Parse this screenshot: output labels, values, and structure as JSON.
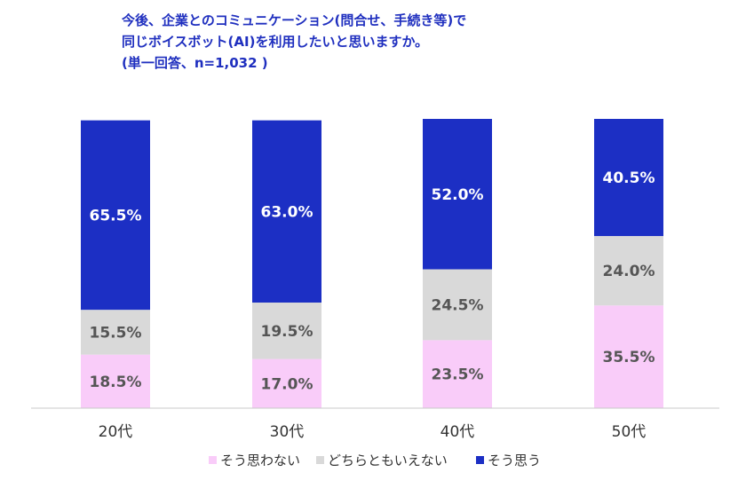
{
  "chart_data": {
    "type": "bar",
    "stacked": true,
    "normalized": true,
    "title_lines": [
      "今後、企業とのコミュニケーション(問合せ、手続き等)で",
      "同じボイスボット(AI)を利用したいと思いますか。",
      "(単一回答、n=1,032 )"
    ],
    "categories": [
      "20代",
      "30代",
      "40代",
      "50代"
    ],
    "series": [
      {
        "name": "そう思わない",
        "color": "#f9ccf9",
        "label_color": "#555555",
        "values": [
          18.5,
          17.0,
          23.5,
          35.5
        ],
        "labels": [
          "18.5%",
          "17.0%",
          "23.5%",
          "35.5%"
        ]
      },
      {
        "name": "どちらともいえない",
        "color": "#d9d9d9",
        "label_color": "#555555",
        "values": [
          15.5,
          19.5,
          24.5,
          24.0
        ],
        "labels": [
          "15.5%",
          "19.5%",
          "24.5%",
          "24.0%"
        ]
      },
      {
        "name": "そう思う",
        "color": "#1c2fc4",
        "label_color": "#ffffff",
        "values": [
          65.5,
          63.0,
          52.0,
          40.5
        ],
        "labels": [
          "65.5%",
          "63.0%",
          "52.0%",
          "40.5%"
        ]
      }
    ],
    "ylim": [
      0,
      100
    ],
    "grid": false,
    "legend_position": "bottom"
  }
}
